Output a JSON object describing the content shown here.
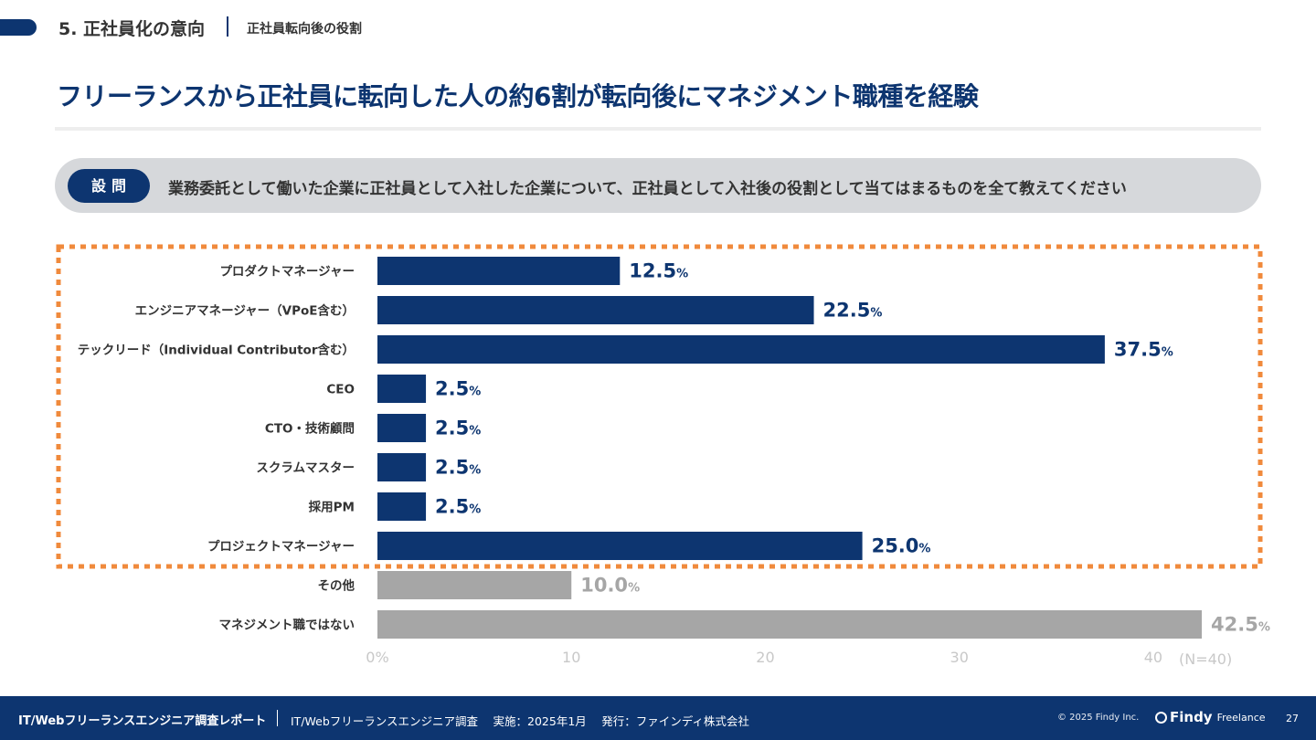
{
  "header": {
    "section_title": "5. 正社員化の意向",
    "section_subtitle": "正社員転向後の役割",
    "headline": "フリーランスから正社員に転向した人の約6割が転向後にマネジメント職種を経験"
  },
  "question": {
    "badge": "設問",
    "text": "業務委託として働いた企業に正社員として入社した企業について、正社員として入社後の役割として当てはまるものを全て教えてください"
  },
  "chart_data": {
    "type": "bar",
    "orientation": "horizontal",
    "categories": [
      "プロダクトマネージャー",
      "エンジニアマネージャー（VPoE含む）",
      "テックリード（Individual Contributor含む）",
      "CEO",
      "CTO・技術顧問",
      "スクラムマスター",
      "採用PM",
      "プロジェクトマネージャー",
      "その他",
      "マネジメント職ではない"
    ],
    "values": [
      12.5,
      22.5,
      37.5,
      2.5,
      2.5,
      2.5,
      2.5,
      25.0,
      10.0,
      42.5
    ],
    "value_labels": [
      "12.5",
      "22.5",
      "37.5",
      "2.5",
      "2.5",
      "2.5",
      "2.5",
      "25.0",
      "10.0",
      "42.5"
    ],
    "unit": "%",
    "highlighted": [
      true,
      true,
      true,
      true,
      true,
      true,
      true,
      true,
      false,
      false
    ],
    "xlim": [
      0,
      42.5
    ],
    "xticks": [
      "0%",
      "10",
      "20",
      "30",
      "40"
    ],
    "sample_note": "(N=40)",
    "grid": false,
    "colors": {
      "highlight": "#0d3570",
      "other": "#a6a6a6",
      "highlight_box": "#f08a3c",
      "axis_text": "#c8c8c8"
    }
  },
  "footer": {
    "report_title": "IT/Webフリーランスエンジニア調査レポート",
    "meta": "IT/Webフリーランスエンジニア調査　 実施：2025年1月　 発行：ファインディ株式会社",
    "copyright": "© 2025 Findy Inc.",
    "logo_word": "Findy",
    "logo_sub": "Freelance",
    "page_number": "27"
  }
}
